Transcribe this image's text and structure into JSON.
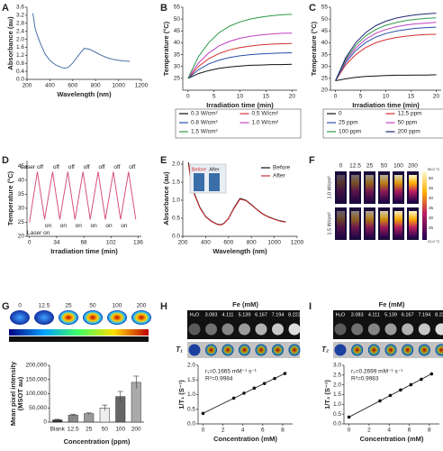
{
  "panels": {
    "letters": [
      "A",
      "B",
      "C",
      "D",
      "E",
      "F",
      "G",
      "H",
      "I"
    ]
  },
  "thermal_panel": {
    "columns": [
      "0",
      "12.5",
      "25",
      "50",
      "100",
      "200"
    ],
    "rows": [
      "1.0 W/cm²",
      "1.5 W/cm²"
    ],
    "scale_max": "55.0 °C",
    "scale_min": "21.0 °C",
    "scale_ticks": [
      50,
      45,
      40,
      35,
      30,
      25
    ]
  },
  "chart_data": [
    {
      "type": "line",
      "x_label": "Wavelength (nm)",
      "y_label": "Absorbance (au)",
      "color": "#4a6fa5",
      "x": [
        250,
        260,
        270,
        290,
        320,
        360,
        400,
        450,
        500,
        530,
        560,
        600,
        650,
        700,
        750,
        800,
        850,
        900,
        950,
        1000,
        1050,
        1100
      ],
      "values": [
        3.3,
        3.0,
        2.55,
        2.2,
        1.75,
        1.25,
        0.95,
        0.72,
        0.6,
        0.56,
        0.6,
        0.82,
        1.2,
        1.55,
        1.5,
        1.35,
        1.2,
        1.08,
        1.0,
        0.95,
        0.92,
        0.9
      ],
      "xlim": [
        200,
        1200
      ],
      "xticks": [
        200,
        400,
        600,
        800,
        1000,
        1200
      ],
      "ylim": [
        0,
        3.6
      ],
      "yticks": [
        {
          "value": 0,
          "label": "0.0"
        },
        0.4,
        0.8,
        1.2,
        1.6,
        {
          "value": 2,
          "label": "2.0"
        },
        2.4,
        2.8,
        3.2,
        3.6
      ]
    },
    {
      "type": "line",
      "x_label": "Irradiation time (min)",
      "y_label": "Temperature (°C)",
      "legend": "below",
      "x": [
        0,
        2,
        4,
        6,
        8,
        10,
        12,
        14,
        16,
        18,
        20
      ],
      "series": [
        {
          "name": "0.3 W/cm²",
          "color": "#111111",
          "values": [
            25,
            27,
            28.3,
            29.2,
            29.8,
            30.2,
            30.5,
            30.6,
            30.8,
            30.8,
            30.9
          ]
        },
        {
          "name": "0.5 W/cm²",
          "color": "#d62f2f",
          "values": [
            25,
            30,
            33.3,
            35.5,
            37,
            38,
            38.6,
            39.1,
            39.4,
            39.6,
            39.7
          ]
        },
        {
          "name": "0.8 W/cm²",
          "color": "#2b4fa8",
          "values": [
            25,
            28.6,
            31.1,
            32.7,
            33.8,
            34.5,
            35,
            35.3,
            35.5,
            35.7,
            35.8
          ]
        },
        {
          "name": "1.0 W/cm²",
          "color": "#c040c0",
          "values": [
            25,
            31.4,
            35.7,
            38.7,
            40.6,
            41.9,
            42.7,
            43.3,
            43.7,
            44,
            44.1
          ]
        },
        {
          "name": "1.5 W/cm²",
          "color": "#2e9a4a",
          "values": [
            25,
            34.1,
            40.1,
            44.3,
            47,
            48.8,
            50,
            50.8,
            51.4,
            51.8,
            52
          ]
        }
      ],
      "xlim": [
        -1,
        21
      ],
      "xticks": [
        0,
        5,
        10,
        15,
        20
      ],
      "ylim": [
        20,
        55
      ],
      "yticks": [
        25,
        30,
        35,
        40,
        45,
        50,
        55
      ]
    },
    {
      "type": "line",
      "x_label": "Irradiation time (min)",
      "y_label": "Temperature (°C)",
      "legend": "below",
      "x": [
        0,
        2,
        4,
        6,
        8,
        10,
        12,
        14,
        16,
        18,
        20
      ],
      "series": [
        {
          "name": "0",
          "color": "#111111",
          "values": [
            24,
            24.8,
            25.4,
            25.8,
            26,
            26.2,
            26.3,
            26.3,
            26.4,
            26.4,
            26.5
          ]
        },
        {
          "name": "12.5 ppm",
          "color": "#d62f2f",
          "values": [
            24,
            30.6,
            35,
            38,
            40,
            41.3,
            42.2,
            42.8,
            43.2,
            43.5,
            43.6
          ]
        },
        {
          "name": "25 ppm",
          "color": "#2b4fa8",
          "values": [
            24,
            31.6,
            36.7,
            40.1,
            42.4,
            43.9,
            44.9,
            45.6,
            46.1,
            46.4,
            46.6
          ]
        },
        {
          "name": "50 ppm",
          "color": "#c040c0",
          "values": [
            24,
            32.3,
            37.8,
            41.5,
            44,
            45.6,
            46.7,
            47.5,
            48,
            48.3,
            48.6
          ]
        },
        {
          "name": "100 ppm",
          "color": "#2e9a4a",
          "values": [
            24,
            32.9,
            38.9,
            42.9,
            45.6,
            47.4,
            48.5,
            49.4,
            49.9,
            50.3,
            50.5
          ]
        },
        {
          "name": "200 ppm",
          "color": "#1c2a6e",
          "values": [
            24,
            33.6,
            40,
            44.3,
            47.2,
            49.1,
            50.4,
            51.2,
            51.8,
            52.2,
            52.5
          ]
        }
      ],
      "xlim": [
        -1,
        21
      ],
      "xticks": [
        0,
        5,
        10,
        15,
        20
      ],
      "ylim": [
        20,
        55
      ],
      "yticks": [
        20,
        25,
        30,
        35,
        40,
        45,
        50,
        55
      ]
    },
    {
      "type": "line",
      "x_label": "Irradiation time (min)",
      "y_label": "Temperature (°C)",
      "color": "#d6507e",
      "x": [
        0,
        10,
        19,
        29,
        38,
        48,
        57,
        67,
        76,
        86,
        95,
        105,
        114,
        124,
        133
      ],
      "values": [
        25,
        43,
        26,
        43,
        26,
        43,
        26,
        43,
        26,
        43,
        26,
        43,
        26,
        43,
        26
      ],
      "top_labels": [
        "Laser off",
        "off",
        "off",
        "off",
        "off",
        "off",
        "off"
      ],
      "bottom_labels": [
        "Laser on",
        "on",
        "on",
        "on",
        "on",
        "on",
        "on"
      ],
      "xlim": [
        -3,
        140
      ],
      "xticks": [
        0,
        34,
        68,
        102,
        136
      ],
      "ylim": [
        20,
        47
      ],
      "yticks": [
        20,
        25,
        30,
        35,
        40,
        45
      ]
    },
    {
      "type": "line",
      "x_label": "Wavelength (nm)",
      "y_label": "Absorbance (au)",
      "legend": "upper right",
      "inset_labels": [
        "Before",
        "After"
      ],
      "x": [
        250,
        270,
        300,
        350,
        400,
        450,
        500,
        530,
        560,
        600,
        650,
        700,
        750,
        800,
        850,
        900,
        950,
        1000,
        1050,
        1100
      ],
      "series": [
        {
          "name": "Before",
          "color": "#111111",
          "values": [
            2.05,
            1.6,
            1.2,
            0.8,
            0.55,
            0.42,
            0.34,
            0.32,
            0.36,
            0.5,
            0.8,
            1.05,
            1.0,
            0.88,
            0.74,
            0.62,
            0.54,
            0.48,
            0.43,
            0.4
          ]
        },
        {
          "name": "After",
          "color": "#d62f2f",
          "values": [
            2.0,
            1.55,
            1.17,
            0.78,
            0.54,
            0.41,
            0.33,
            0.31,
            0.35,
            0.49,
            0.78,
            1.03,
            0.99,
            0.87,
            0.73,
            0.61,
            0.53,
            0.47,
            0.42,
            0.39
          ]
        }
      ],
      "xlim": [
        200,
        1200
      ],
      "xticks": [
        200,
        400,
        600,
        800,
        1000,
        1200
      ],
      "ylim": [
        0,
        2.1
      ],
      "yticks": [
        {
          "value": 0,
          "label": "0.0"
        },
        0.5,
        {
          "value": 1,
          "label": "1.0"
        },
        1.5,
        {
          "value": 2,
          "label": "2.0"
        }
      ]
    },
    {
      "type": "bar",
      "x_label": "Concentration (ppm)",
      "y_label": [
        "Mean pixel intensity",
        "(MSOT au)"
      ],
      "image_labels": [
        "0",
        "12.5",
        "25",
        "50",
        "100",
        "200"
      ],
      "categories": [
        "Blank",
        "12.5",
        "25",
        "50",
        "100",
        "200"
      ],
      "values": [
        8000,
        25000,
        30000,
        50000,
        90000,
        140000
      ],
      "errors": [
        2000,
        3000,
        2500,
        10000,
        18000,
        22000
      ],
      "colors": [
        "#333333",
        "#888888",
        "#9a9a9a",
        "#eeeeee",
        "#666666",
        "#aaaaaa"
      ],
      "ylim": [
        0,
        200000
      ],
      "yticks": [
        0,
        {
          "value": 50000,
          "label": "50,000"
        },
        {
          "value": 100000,
          "label": "100,000"
        },
        {
          "value": 150000,
          "label": "150,000"
        },
        {
          "value": 200000,
          "label": "200,000"
        }
      ]
    },
    {
      "type": "scatter",
      "fit": "linear",
      "header": "Fe (mM)",
      "row_label": "T₁",
      "x_label": "Concentration (mM)",
      "y_label": "1/T₁ (S⁻¹)",
      "image_labels": [
        "H₂O",
        "3.083",
        "4.111",
        "5.139",
        "6.167",
        "7.194",
        "8.222"
      ],
      "annotations": [
        "r₁=0.1665 mM⁻¹ s⁻¹",
        "R²=0.9984"
      ],
      "x": [
        0,
        3.083,
        4.111,
        5.139,
        6.167,
        7.194,
        8.222
      ],
      "values": [
        0.36,
        0.88,
        1.05,
        1.22,
        1.38,
        1.55,
        1.72
      ],
      "xlim": [
        -0.5,
        9
      ],
      "xticks": [
        0,
        2,
        4,
        6,
        8
      ],
      "ylim": [
        0,
        2
      ],
      "yticks": [
        {
          "value": 0,
          "label": "0.0"
        },
        0.5,
        {
          "value": 1,
          "label": "1.0"
        },
        1.5,
        {
          "value": 2,
          "label": "2.0"
        }
      ]
    },
    {
      "type": "scatter",
      "fit": "linear",
      "header": "Fe (mM)",
      "row_label": "T₂",
      "x_label": "Concentration (mM)",
      "y_label": "1/T₂ (S⁻¹)",
      "image_labels": [
        "H₂O",
        "3.083",
        "4.111",
        "5.139",
        "6.167",
        "7.194",
        "8.222"
      ],
      "annotations": [
        "r₂=0.2699 mM⁻¹ s⁻¹",
        "R²=0.9983"
      ],
      "x": [
        0,
        3.083,
        4.111,
        5.139,
        6.167,
        7.194,
        8.222
      ],
      "values": [
        0.35,
        1.18,
        1.46,
        1.74,
        2.01,
        2.28,
        2.56
      ],
      "xlim": [
        -0.5,
        9
      ],
      "xticks": [
        0,
        2,
        4,
        6,
        8
      ],
      "ylim": [
        0,
        3
      ],
      "yticks": [
        {
          "value": 0,
          "label": "0.0"
        },
        0.5,
        {
          "value": 1,
          "label": "1.0"
        },
        1.5,
        {
          "value": 2,
          "label": "2.0"
        },
        2.5,
        {
          "value": 3,
          "label": "3.0"
        }
      ]
    }
  ]
}
